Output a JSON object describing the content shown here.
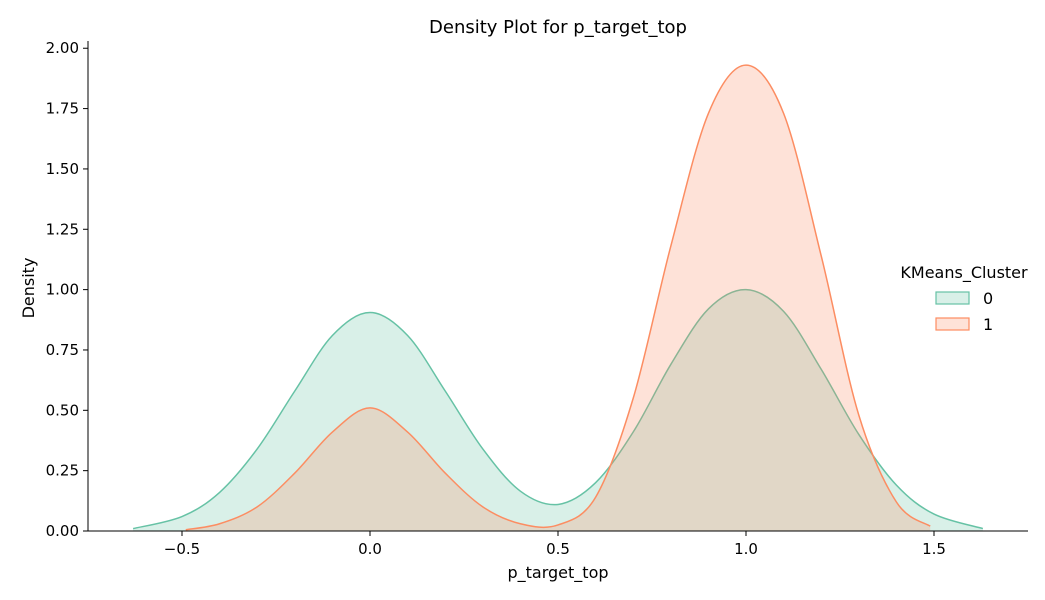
{
  "chart_data": {
    "type": "area",
    "title": "Density Plot for p_target_top",
    "xlabel": "p_target_top",
    "ylabel": "Density",
    "xlim": [
      -0.75,
      1.75
    ],
    "ylim": [
      0,
      2.03
    ],
    "x_ticks": [
      "−0.5",
      "0.0",
      "0.5",
      "1.0",
      "1.5"
    ],
    "x_tick_values": [
      -0.5,
      0.0,
      0.5,
      1.0,
      1.5
    ],
    "y_ticks": [
      "0.00",
      "0.25",
      "0.50",
      "0.75",
      "1.00",
      "1.25",
      "1.50",
      "1.75",
      "2.00"
    ],
    "y_tick_values": [
      0,
      0.25,
      0.5,
      0.75,
      1.0,
      1.25,
      1.5,
      1.75,
      2.0
    ],
    "grid": false,
    "legend": {
      "title": "KMeans_Cluster",
      "placement": "right"
    },
    "series": [
      {
        "name": "0",
        "color": "#66c2a5",
        "x": [
          -0.63,
          -0.5,
          -0.4,
          -0.3,
          -0.2,
          -0.1,
          0.0,
          0.1,
          0.2,
          0.3,
          0.4,
          0.5,
          0.6,
          0.7,
          0.8,
          0.9,
          1.0,
          1.1,
          1.2,
          1.3,
          1.4,
          1.5,
          1.63
        ],
        "values": [
          0.01,
          0.06,
          0.16,
          0.34,
          0.58,
          0.81,
          0.905,
          0.81,
          0.58,
          0.34,
          0.165,
          0.11,
          0.2,
          0.41,
          0.69,
          0.92,
          1.0,
          0.91,
          0.67,
          0.4,
          0.19,
          0.07,
          0.01
        ]
      },
      {
        "name": "1",
        "color": "#fc8d62",
        "x": [
          -0.49,
          -0.4,
          -0.3,
          -0.2,
          -0.1,
          0.0,
          0.1,
          0.2,
          0.3,
          0.4,
          0.5,
          0.6,
          0.7,
          0.8,
          0.9,
          1.0,
          1.1,
          1.2,
          1.3,
          1.4,
          1.49
        ],
        "values": [
          0.005,
          0.03,
          0.1,
          0.24,
          0.41,
          0.51,
          0.41,
          0.24,
          0.1,
          0.03,
          0.025,
          0.14,
          0.55,
          1.18,
          1.73,
          1.93,
          1.73,
          1.14,
          0.48,
          0.12,
          0.02
        ]
      }
    ]
  }
}
